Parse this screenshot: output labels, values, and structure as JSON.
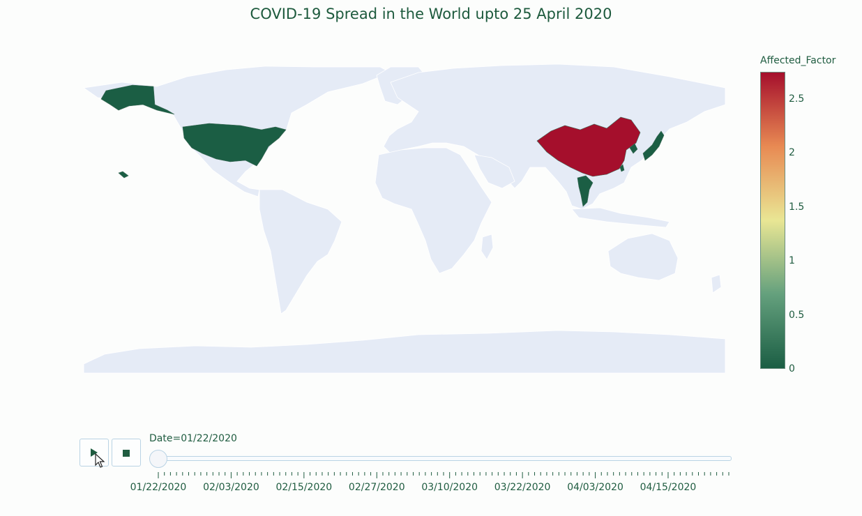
{
  "title": "COVID-19 Spread in the World upto 25 April 2020",
  "chart_data": {
    "type": "choropleth",
    "colorbar": {
      "title": "Affected_Factor",
      "range": [
        0,
        2.75
      ],
      "ticks": [
        "0",
        "0.5",
        "1",
        "1.5",
        "2",
        "2.5"
      ],
      "colorscale": [
        "#1b5e44",
        "#64a07d",
        "#e9e694",
        "#e88a53",
        "#a50f2c"
      ]
    },
    "frame_date": "01/22/2020",
    "regions": [
      {
        "name": "China",
        "value": 2.75
      },
      {
        "name": "United States",
        "value": 0
      },
      {
        "name": "Japan",
        "value": 0
      },
      {
        "name": "South Korea",
        "value": 0
      },
      {
        "name": "Thailand",
        "value": 0
      },
      {
        "name": "Taiwan",
        "value": 0
      }
    ]
  },
  "controls": {
    "play_icon": "play-icon",
    "stop_icon": "stop-icon",
    "slider_label": "Date=01/22/2020",
    "slider_ticks": [
      "01/22/2020",
      "02/03/2020",
      "02/15/2020",
      "02/27/2020",
      "03/10/2020",
      "03/22/2020",
      "04/03/2020",
      "04/15/2020"
    ]
  },
  "colors": {
    "land": "#e5ebf6",
    "low": "#1b5e44",
    "high": "#a50f2c"
  }
}
